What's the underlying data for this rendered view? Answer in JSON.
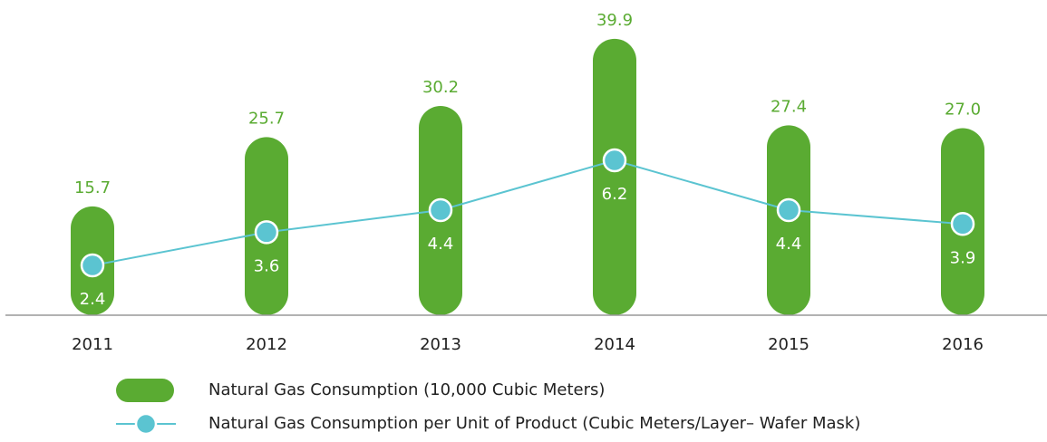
{
  "chart_data": {
    "type": "bar",
    "categories": [
      "2011",
      "2012",
      "2013",
      "2014",
      "2015",
      "2016"
    ],
    "series": [
      {
        "name": "Natural Gas Consumption (10,000 Cubic Meters)",
        "color": "#5aab32",
        "values": [
          15.7,
          25.7,
          30.2,
          39.9,
          27.4,
          27.0
        ],
        "value_labels": [
          "15.7",
          "25.7",
          "30.2",
          "39.9",
          "27.4",
          "27.0"
        ]
      },
      {
        "name": "Natural Gas Consumption per Unit of Product (Cubic Meters/Layer– Wafer Mask)",
        "type": "line",
        "axis": "y2",
        "color": "#5bc4d1",
        "values": [
          2.4,
          3.6,
          4.4,
          6.2,
          4.4,
          3.9
        ],
        "value_labels": [
          "2.4",
          "3.6",
          "4.4",
          "6.2",
          "4.4",
          "3.9"
        ]
      }
    ],
    "ylim": [
      0,
      45.5
    ],
    "y2lim": [
      0.6,
      12
    ]
  }
}
